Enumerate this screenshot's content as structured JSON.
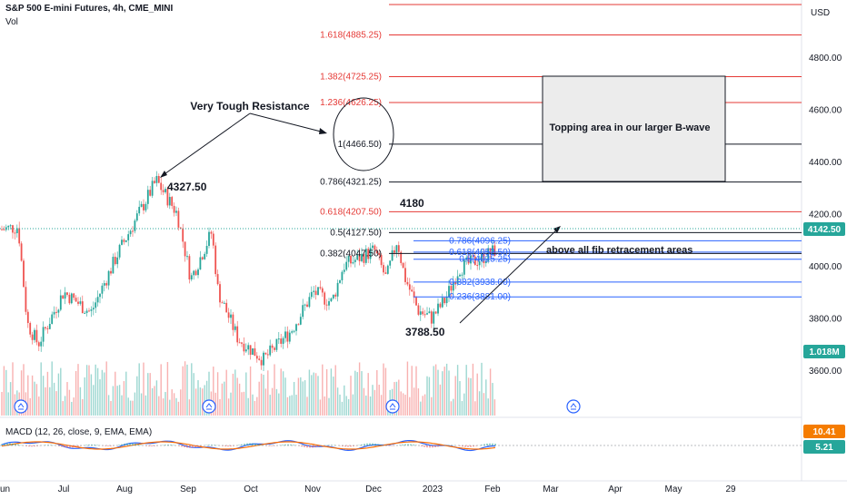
{
  "header": {
    "symbol": "S&P 500 E-mini Futures, 4h, CME_MINI",
    "vol": "Vol",
    "macd": "MACD (12, 26, close, 9, EMA, EMA)"
  },
  "chart_data": {
    "type": "candlestick",
    "currency": "USD",
    "y_ticks": [
      "4800.00",
      "4600.00",
      "4400.00",
      "4200.00",
      "4000.00",
      "3800.00",
      "3600.00"
    ],
    "x_ticks": [
      "Jun",
      "Jul",
      "Aug",
      "Sep",
      "Oct",
      "Nov",
      "Dec",
      "2023",
      "Feb",
      "Mar",
      "Apr",
      "May",
      "29"
    ],
    "last_price": "4142.50",
    "volume_label": "1.018M",
    "macd_values": [
      "10.41",
      "5.21"
    ],
    "fib_levels": [
      {
        "label": "1.618(4885.25)",
        "price": 4885.25,
        "color": "#e53935"
      },
      {
        "label": "1.382(4725.25)",
        "price": 4725.25,
        "color": "#e53935"
      },
      {
        "label": "1.236(4626.25)",
        "price": 4626.25,
        "color": "#e53935"
      },
      {
        "label": "1(4466.50)",
        "price": 4466.5,
        "color": "#131722"
      },
      {
        "label": "0.786(4321.25)",
        "price": 4321.25,
        "color": "#131722"
      },
      {
        "label": "0.618(4207.50)",
        "price": 4207.5,
        "color": "#e53935"
      },
      {
        "label": "0.5(4127.50)",
        "price": 4127.5,
        "color": "#131722"
      },
      {
        "label": "0.382(4047.50)",
        "price": 4047.5,
        "color": "#131722"
      }
    ],
    "inner_fib_levels": [
      {
        "label": "0.786(4096.25)",
        "price": 4096.25
      },
      {
        "label": "0.618(4052.50)",
        "price": 4052.5
      },
      {
        "label": "0.5(4025.25)",
        "price": 4025.25
      },
      {
        "label": "0.382(3938.00)",
        "price": 3938.0
      },
      {
        "label": "0.236(3881.00)",
        "price": 3881.0
      }
    ],
    "annotations": {
      "high": "4327.50",
      "low": "3788.50",
      "dec_high": "4180",
      "resistance": "Very Tough Resistance",
      "topping": "Topping area in our larger B-wave",
      "above": "above all fib retracement areas"
    }
  }
}
